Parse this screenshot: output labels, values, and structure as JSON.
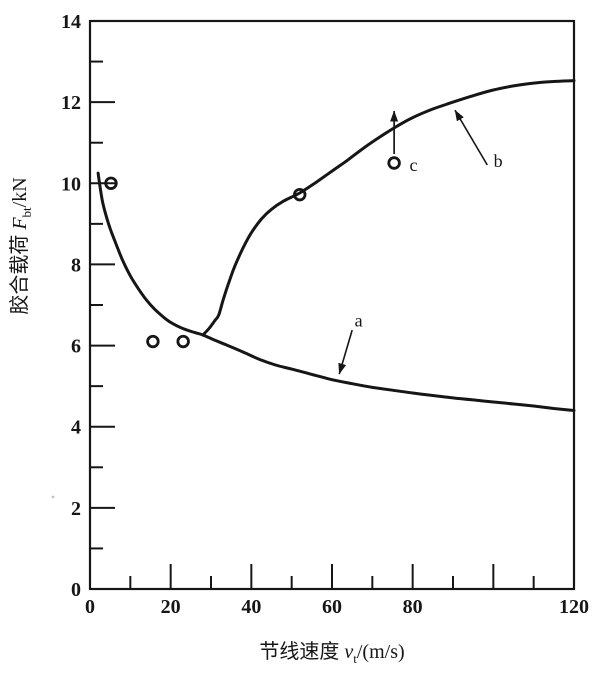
{
  "colors": {
    "ink": "#161616",
    "paper": "#ffffff"
  },
  "chart_data": {
    "type": "line",
    "title": "",
    "xlabel": {
      "cn": "节线速度 ",
      "sym": "v",
      "sub": "t",
      "unit": "/(m/s)"
    },
    "ylabel": {
      "cn": "胶合载荷 ",
      "sym": "F",
      "sub": "bt",
      "unit": "/kN"
    },
    "xlim": [
      0,
      120
    ],
    "ylim": [
      0,
      14
    ],
    "x_minor_step": 10,
    "x_major_step": 20,
    "y_minor_step": 1,
    "y_major_step": 2,
    "grid": false,
    "x_tick_labels": [
      {
        "v": 0,
        "t": "0"
      },
      {
        "v": 20,
        "t": "20"
      },
      {
        "v": 40,
        "t": "40"
      },
      {
        "v": 60,
        "t": "60"
      },
      {
        "v": 80,
        "t": "80"
      },
      {
        "v": 120,
        "t": "120"
      }
    ],
    "y_tick_labels": [
      {
        "v": 0,
        "t": "0"
      },
      {
        "v": 2,
        "t": "2"
      },
      {
        "v": 4,
        "t": "4"
      },
      {
        "v": 6,
        "t": "6"
      },
      {
        "v": 8,
        "t": "8"
      },
      {
        "v": 10,
        "t": "10"
      },
      {
        "v": 12,
        "t": "12"
      },
      {
        "v": 14,
        "t": "14"
      }
    ],
    "series": [
      {
        "name": "a",
        "points": [
          [
            2,
            10.25
          ],
          [
            3,
            9.6
          ],
          [
            4,
            9.2
          ],
          [
            5,
            8.88
          ],
          [
            6,
            8.62
          ],
          [
            8,
            8.12
          ],
          [
            10,
            7.72
          ],
          [
            12,
            7.4
          ],
          [
            14,
            7.12
          ],
          [
            16,
            6.9
          ],
          [
            18,
            6.72
          ],
          [
            20,
            6.57
          ],
          [
            23,
            6.42
          ],
          [
            26,
            6.32
          ],
          [
            28,
            6.26
          ],
          [
            31,
            6.13
          ],
          [
            34,
            6.01
          ],
          [
            38,
            5.84
          ],
          [
            42,
            5.66
          ],
          [
            46,
            5.52
          ],
          [
            50,
            5.42
          ],
          [
            55,
            5.29
          ],
          [
            60,
            5.16
          ],
          [
            65,
            5.06
          ],
          [
            70,
            4.97
          ],
          [
            75,
            4.9
          ],
          [
            80,
            4.83
          ],
          [
            85,
            4.77
          ],
          [
            90,
            4.71
          ],
          [
            95,
            4.66
          ],
          [
            100,
            4.61
          ],
          [
            105,
            4.56
          ],
          [
            110,
            4.51
          ],
          [
            115,
            4.45
          ],
          [
            120,
            4.4
          ]
        ]
      },
      {
        "name": "b",
        "points": [
          [
            28,
            6.26
          ],
          [
            29.5,
            6.42
          ],
          [
            31,
            6.62
          ],
          [
            31.9,
            6.75
          ],
          [
            33,
            7.12
          ],
          [
            34.5,
            7.58
          ],
          [
            36,
            7.98
          ],
          [
            38,
            8.42
          ],
          [
            40,
            8.78
          ],
          [
            42.5,
            9.12
          ],
          [
            45,
            9.36
          ],
          [
            48,
            9.56
          ],
          [
            52,
            9.76
          ],
          [
            56,
            10.02
          ],
          [
            60,
            10.3
          ],
          [
            64,
            10.58
          ],
          [
            68,
            10.88
          ],
          [
            72,
            11.15
          ],
          [
            76,
            11.4
          ],
          [
            80,
            11.62
          ],
          [
            85,
            11.83
          ],
          [
            90,
            12.0
          ],
          [
            95,
            12.16
          ],
          [
            100,
            12.3
          ],
          [
            105,
            12.4
          ],
          [
            110,
            12.47
          ],
          [
            115,
            12.51
          ],
          [
            120,
            12.53
          ]
        ]
      }
    ],
    "scatter_points": [
      {
        "x": 5.2,
        "y": 10.0
      },
      {
        "x": 15.6,
        "y": 6.1
      },
      {
        "x": 23.1,
        "y": 6.1
      },
      {
        "x": 52.0,
        "y": 9.72
      },
      {
        "x": 75.4,
        "y": 10.5,
        "arrow_up": true
      }
    ],
    "annotations": [
      {
        "text": "a",
        "tx": 66.6,
        "ty": 6.62,
        "from": [
          65.0,
          6.38
        ],
        "to": [
          61.8,
          5.3
        ]
      },
      {
        "text": "b",
        "tx": 101.2,
        "ty": 10.55,
        "from": [
          98.5,
          10.45
        ],
        "to": [
          90.5,
          11.8
        ]
      },
      {
        "text": "c",
        "tx": 80.2,
        "ty": 10.45
      }
    ]
  }
}
